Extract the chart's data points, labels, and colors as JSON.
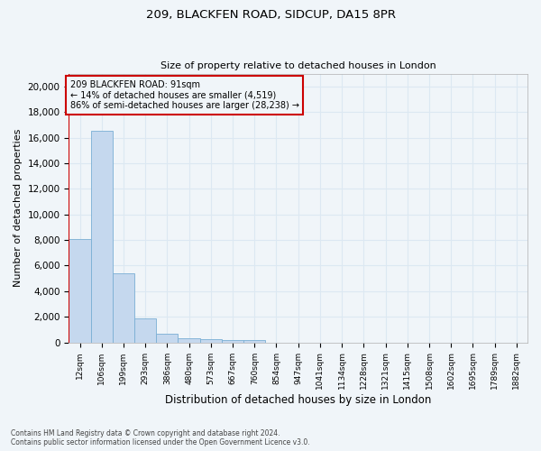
{
  "title_line1": "209, BLACKFEN ROAD, SIDCUP, DA15 8PR",
  "title_line2": "Size of property relative to detached houses in London",
  "xlabel": "Distribution of detached houses by size in London",
  "ylabel": "Number of detached properties",
  "categories": [
    "12sqm",
    "106sqm",
    "199sqm",
    "293sqm",
    "386sqm",
    "480sqm",
    "573sqm",
    "667sqm",
    "760sqm",
    "854sqm",
    "947sqm",
    "1041sqm",
    "1134sqm",
    "1228sqm",
    "1321sqm",
    "1415sqm",
    "1508sqm",
    "1602sqm",
    "1695sqm",
    "1789sqm",
    "1882sqm"
  ],
  "values": [
    8050,
    16500,
    5400,
    1850,
    700,
    320,
    220,
    170,
    150,
    0,
    0,
    0,
    0,
    0,
    0,
    0,
    0,
    0,
    0,
    0,
    0
  ],
  "bar_color": "#c5d8ee",
  "bar_edge_color": "#7aafd4",
  "grid_color": "#dce8f2",
  "annotation_line_color": "#cc0000",
  "annotation_box_edge_color": "#cc0000",
  "annotation_text_line1": "209 BLACKFEN ROAD: 91sqm",
  "annotation_text_line2": "← 14% of detached houses are smaller (4,519)",
  "annotation_text_line3": "86% of semi-detached houses are larger (28,238) →",
  "ylim": [
    0,
    21000
  ],
  "yticks": [
    0,
    2000,
    4000,
    6000,
    8000,
    10000,
    12000,
    14000,
    16000,
    18000,
    20000
  ],
  "footer_line1": "Contains HM Land Registry data © Crown copyright and database right 2024.",
  "footer_line2": "Contains public sector information licensed under the Open Government Licence v3.0.",
  "background_color": "#f0f5f9"
}
